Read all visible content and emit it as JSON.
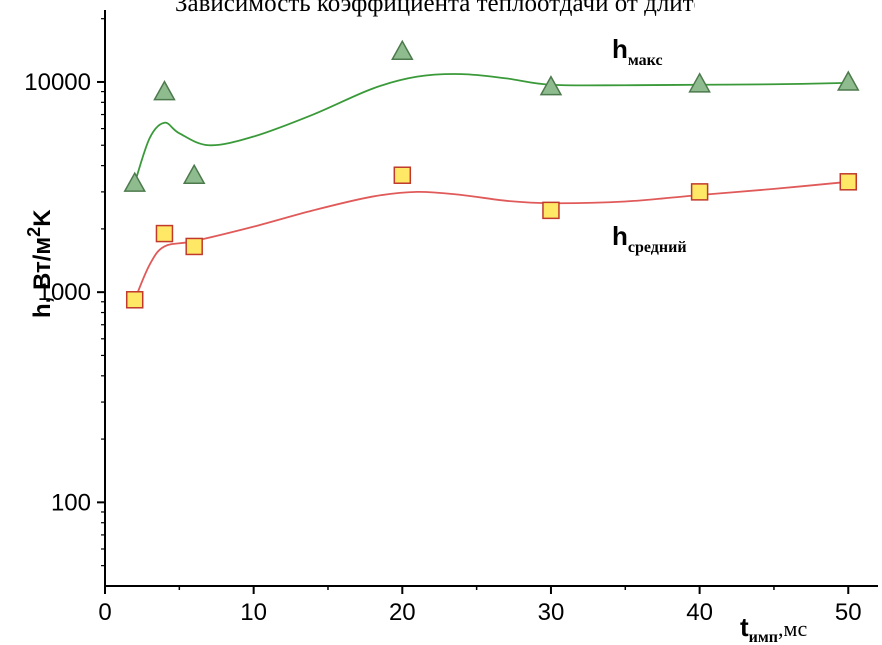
{
  "page": {
    "top_text": "Зависимость коэффициента теплоотдачи от длительности импульса"
  },
  "chart_data": {
    "type": "scatter",
    "log_y": true,
    "xlim": [
      0,
      52
    ],
    "ylim": [
      40,
      22000
    ],
    "x_ticks": [
      0,
      10,
      20,
      30,
      40,
      50
    ],
    "y_ticks": [
      100,
      1000,
      10000
    ],
    "ylabel": {
      "main": "h, Вт/м",
      "sup": "2",
      "tail": "K"
    },
    "xlabel": {
      "main": "t",
      "sub": "имп",
      "tail": ",мс"
    },
    "series": [
      {
        "name": "h",
        "name_sub": "макс",
        "marker": "triangle",
        "marker_fill": "#8fbc8f",
        "marker_stroke": "#4d7a4d",
        "line_color": "#3a9a3a",
        "x": [
          2,
          4,
          6,
          20,
          30,
          40,
          50
        ],
        "y": [
          3300,
          9000,
          3600,
          14000,
          9500,
          9800,
          10000
        ]
      },
      {
        "name": "h",
        "name_sub": "средний",
        "marker": "square",
        "marker_fill": "#ffe866",
        "marker_stroke": "#c0392b",
        "line_color": "#e05a5a",
        "x": [
          2,
          4,
          6,
          20,
          30,
          40,
          50
        ],
        "y": [
          920,
          1900,
          1650,
          3600,
          2450,
          3000,
          3350
        ]
      }
    ],
    "curves": [
      {
        "series": 0,
        "x": [
          2,
          3,
          4,
          5,
          7,
          10,
          14,
          18,
          21,
          24,
          27,
          30,
          35,
          40,
          45,
          50
        ],
        "y": [
          3300,
          5400,
          6400,
          5700,
          5000,
          5500,
          7000,
          9300,
          10600,
          10900,
          10400,
          9700,
          9650,
          9700,
          9750,
          9900
        ]
      },
      {
        "series": 1,
        "x": [
          2,
          3,
          4,
          6,
          10,
          14,
          18,
          21,
          24,
          27,
          30,
          35,
          40,
          45,
          50
        ],
        "y": [
          920,
          1350,
          1650,
          1750,
          2050,
          2450,
          2850,
          3000,
          2900,
          2720,
          2650,
          2700,
          2900,
          3100,
          3350
        ]
      }
    ]
  }
}
